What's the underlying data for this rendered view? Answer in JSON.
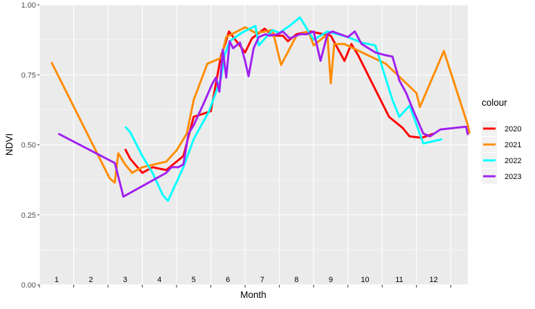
{
  "chart_data": {
    "type": "line",
    "xlabel": "Month",
    "ylabel": "NDVI",
    "xlim": [
      0.5,
      13
    ],
    "ylim": [
      0,
      1
    ],
    "month_labels": [
      "1",
      "2",
      "3",
      "4",
      "5",
      "6",
      "7",
      "8",
      "9",
      "10",
      "11",
      "12"
    ],
    "y_ticks": [
      0,
      0.25,
      0.5,
      0.75,
      1
    ],
    "y_tick_labels": [
      "0.00",
      "0.25",
      "0.50",
      "0.75",
      "1.00"
    ],
    "grid": true,
    "legend": {
      "title": "colour",
      "position": "right"
    },
    "series": [
      {
        "name": "2020",
        "color": "#ff0000",
        "points": [
          [
            3.0,
            0.485
          ],
          [
            3.15,
            0.45
          ],
          [
            3.5,
            0.4
          ],
          [
            3.8,
            0.42
          ],
          [
            4.2,
            0.41
          ],
          [
            4.5,
            0.44
          ],
          [
            4.7,
            0.46
          ],
          [
            5.0,
            0.6
          ],
          [
            5.5,
            0.62
          ],
          [
            5.8,
            0.82
          ],
          [
            5.92,
            0.86
          ],
          [
            6.03,
            0.905
          ],
          [
            6.5,
            0.83
          ],
          [
            6.7,
            0.88
          ],
          [
            7.07,
            0.915
          ],
          [
            7.3,
            0.89
          ],
          [
            7.4,
            0.89
          ],
          [
            7.6,
            0.89
          ],
          [
            7.75,
            0.87
          ],
          [
            8.0,
            0.895
          ],
          [
            8.4,
            0.905
          ],
          [
            9.0,
            0.89
          ],
          [
            9.4,
            0.8
          ],
          [
            9.6,
            0.86
          ],
          [
            9.8,
            0.82
          ],
          [
            10.7,
            0.6
          ],
          [
            11.1,
            0.56
          ],
          [
            11.3,
            0.53
          ],
          [
            11.65,
            0.525
          ],
          [
            12.0,
            0.54
          ]
        ]
      },
      {
        "name": "2021",
        "color": "#ff8c00",
        "points": [
          [
            0.85,
            0.795
          ],
          [
            2.55,
            0.38
          ],
          [
            2.7,
            0.365
          ],
          [
            2.8,
            0.47
          ],
          [
            3.0,
            0.43
          ],
          [
            3.2,
            0.4
          ],
          [
            3.5,
            0.42
          ],
          [
            4.2,
            0.44
          ],
          [
            4.5,
            0.48
          ],
          [
            4.8,
            0.54
          ],
          [
            5.0,
            0.66
          ],
          [
            5.4,
            0.79
          ],
          [
            5.8,
            0.81
          ],
          [
            5.95,
            0.885
          ],
          [
            6.5,
            0.92
          ],
          [
            6.8,
            0.9
          ],
          [
            7.1,
            0.905
          ],
          [
            7.3,
            0.91
          ],
          [
            7.55,
            0.785
          ],
          [
            8.0,
            0.89
          ],
          [
            8.35,
            0.905
          ],
          [
            8.5,
            0.855
          ],
          [
            8.9,
            0.895
          ],
          [
            9.0,
            0.72
          ],
          [
            9.1,
            0.86
          ],
          [
            9.4,
            0.86
          ],
          [
            10.6,
            0.79
          ],
          [
            11.5,
            0.685
          ],
          [
            11.6,
            0.635
          ],
          [
            12.3,
            0.835
          ],
          [
            13.0,
            0.57
          ],
          [
            13.05,
            0.54
          ]
        ]
      },
      {
        "name": "2022",
        "color": "#00ffff",
        "points": [
          [
            3.0,
            0.565
          ],
          [
            3.15,
            0.545
          ],
          [
            3.5,
            0.46
          ],
          [
            3.8,
            0.4
          ],
          [
            4.1,
            0.32
          ],
          [
            4.25,
            0.3
          ],
          [
            4.7,
            0.42
          ],
          [
            5.0,
            0.52
          ],
          [
            5.45,
            0.62
          ],
          [
            5.8,
            0.74
          ],
          [
            5.9,
            0.82
          ],
          [
            6.05,
            0.87
          ],
          [
            6.4,
            0.9
          ],
          [
            6.8,
            0.925
          ],
          [
            6.9,
            0.855
          ],
          [
            7.3,
            0.91
          ],
          [
            7.5,
            0.9
          ],
          [
            7.8,
            0.925
          ],
          [
            8.1,
            0.955
          ],
          [
            8.5,
            0.875
          ],
          [
            8.9,
            0.905
          ],
          [
            9.5,
            0.885
          ],
          [
            9.9,
            0.865
          ],
          [
            10.3,
            0.855
          ],
          [
            10.8,
            0.66
          ],
          [
            11.0,
            0.6
          ],
          [
            11.3,
            0.64
          ],
          [
            11.7,
            0.505
          ],
          [
            12.25,
            0.52
          ]
        ]
      },
      {
        "name": "2023",
        "color": "#a020f0",
        "points": [
          [
            1.05,
            0.54
          ],
          [
            2.7,
            0.435
          ],
          [
            2.95,
            0.315
          ],
          [
            4.2,
            0.4
          ],
          [
            4.35,
            0.42
          ],
          [
            4.55,
            0.42
          ],
          [
            4.7,
            0.43
          ],
          [
            4.85,
            0.54
          ],
          [
            5.0,
            0.57
          ],
          [
            5.3,
            0.65
          ],
          [
            5.55,
            0.72
          ],
          [
            5.65,
            0.74
          ],
          [
            5.75,
            0.69
          ],
          [
            5.85,
            0.84
          ],
          [
            5.95,
            0.74
          ],
          [
            6.05,
            0.87
          ],
          [
            6.15,
            0.845
          ],
          [
            6.35,
            0.865
          ],
          [
            6.5,
            0.8
          ],
          [
            6.6,
            0.745
          ],
          [
            6.75,
            0.845
          ],
          [
            6.9,
            0.885
          ],
          [
            7.1,
            0.895
          ],
          [
            7.2,
            0.89
          ],
          [
            7.45,
            0.895
          ],
          [
            7.6,
            0.905
          ],
          [
            7.8,
            0.88
          ],
          [
            8.1,
            0.895
          ],
          [
            8.3,
            0.895
          ],
          [
            8.5,
            0.905
          ],
          [
            8.7,
            0.8
          ],
          [
            8.9,
            0.895
          ],
          [
            9.05,
            0.905
          ],
          [
            9.5,
            0.885
          ],
          [
            9.7,
            0.905
          ],
          [
            9.9,
            0.86
          ],
          [
            10.3,
            0.83
          ],
          [
            10.6,
            0.82
          ],
          [
            10.8,
            0.815
          ],
          [
            11.0,
            0.73
          ],
          [
            11.2,
            0.685
          ],
          [
            11.4,
            0.625
          ],
          [
            11.7,
            0.54
          ],
          [
            11.9,
            0.53
          ],
          [
            12.2,
            0.555
          ],
          [
            12.95,
            0.565
          ],
          [
            13.0,
            0.535
          ]
        ]
      }
    ]
  }
}
